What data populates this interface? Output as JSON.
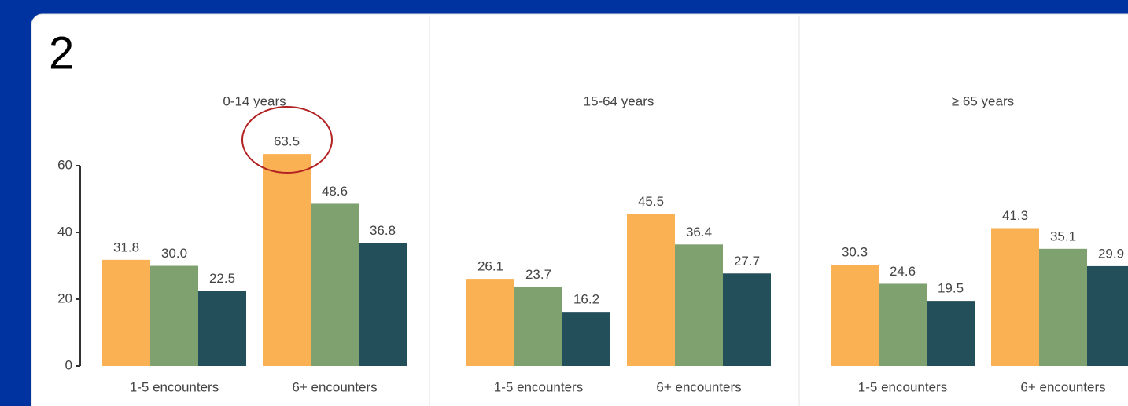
{
  "label": "2",
  "chart_data": [
    {
      "type": "bar",
      "title": "0-14 years",
      "categories": [
        "1-5 encounters",
        "6+ encounters"
      ],
      "series": [
        {
          "color": "#f9b153",
          "values": [
            31.8,
            63.5
          ],
          "value_labels": [
            "31.8",
            "63.5"
          ]
        },
        {
          "color": "#7fa16f",
          "values": [
            30.0,
            48.6
          ],
          "value_labels": [
            "30.0",
            "48.6"
          ]
        },
        {
          "color": "#234f5a",
          "values": [
            22.5,
            36.8
          ],
          "value_labels": [
            "22.5",
            "36.8"
          ]
        }
      ],
      "ylim": [
        0,
        60
      ],
      "yticks": [
        0,
        20,
        40,
        60
      ]
    },
    {
      "type": "bar",
      "title": "15-64 years",
      "categories": [
        "1-5 encounters",
        "6+ encounters"
      ],
      "series": [
        {
          "color": "#f9b153",
          "values": [
            26.1,
            45.5
          ],
          "value_labels": [
            "26.1",
            "45.5"
          ]
        },
        {
          "color": "#7fa16f",
          "values": [
            23.7,
            36.4
          ],
          "value_labels": [
            "23.7",
            "36.4"
          ]
        },
        {
          "color": "#234f5a",
          "values": [
            16.2,
            27.7
          ],
          "value_labels": [
            "16.2",
            "27.7"
          ]
        }
      ],
      "ylim": [
        0,
        60
      ]
    },
    {
      "type": "bar",
      "title": "≥ 65 years",
      "categories": [
        "1-5 encounters",
        "6+ encounters"
      ],
      "series": [
        {
          "color": "#f9b153",
          "values": [
            30.3,
            41.3
          ],
          "value_labels": [
            "30.3",
            "41.3"
          ]
        },
        {
          "color": "#7fa16f",
          "values": [
            24.6,
            35.1
          ],
          "value_labels": [
            "24.6",
            "35.1"
          ]
        },
        {
          "color": "#234f5a",
          "values": [
            19.5,
            29.9
          ],
          "value_labels": [
            "19.5",
            "29.9"
          ]
        }
      ],
      "ylim": [
        0,
        60
      ]
    }
  ]
}
